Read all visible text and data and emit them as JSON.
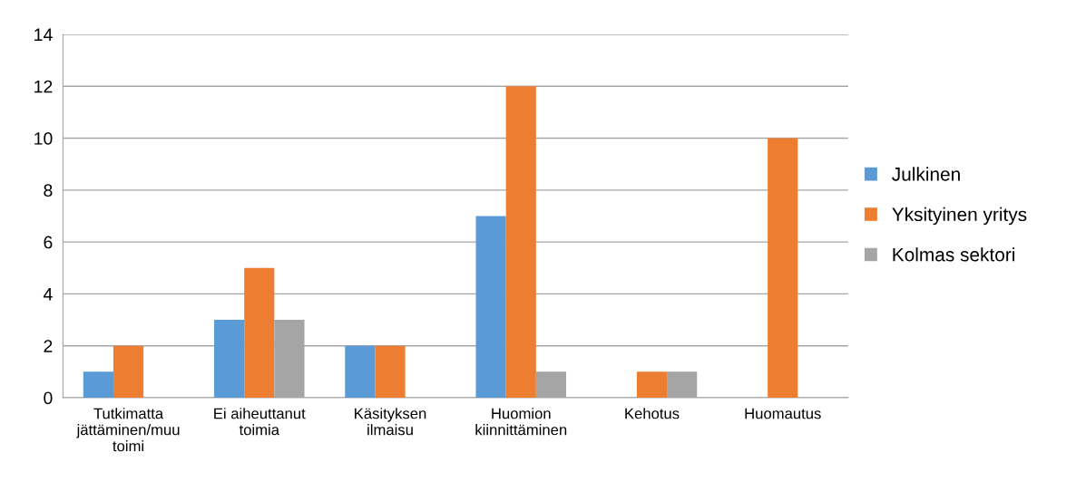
{
  "chart_data": {
    "type": "bar",
    "categories": [
      "Tutkimatta\njättäminen/muu\ntoimi",
      "Ei aiheuttanut\ntoimia",
      "Käsityksen\nilmaisu",
      "Huomion\nkiinnittäminen",
      "Kehotus",
      "Huomautus"
    ],
    "series": [
      {
        "name": "Julkinen",
        "color": "#5b9bd5",
        "values": [
          1,
          3,
          2,
          7,
          0,
          0
        ]
      },
      {
        "name": "Yksityinen yritys",
        "color": "#ed7d31",
        "values": [
          2,
          5,
          2,
          12,
          1,
          10
        ]
      },
      {
        "name": "Kolmas sektori",
        "color": "#a5a5a5",
        "values": [
          0,
          3,
          0,
          1,
          1,
          0
        ]
      }
    ],
    "ylim": [
      0,
      14
    ],
    "yticks": [
      0,
      2,
      4,
      6,
      8,
      10,
      12,
      14
    ],
    "grid": "y",
    "legend": "right"
  }
}
